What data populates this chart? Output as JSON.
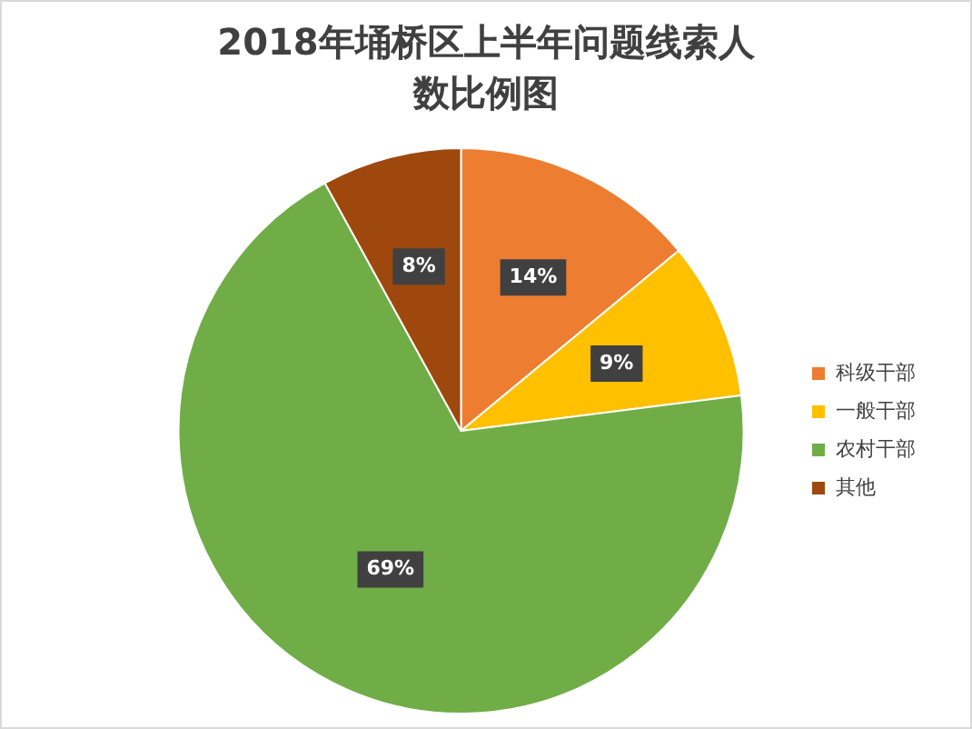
{
  "chart_data": {
    "type": "pie",
    "title": "2018年埇桥区上半年问题线索人数比例图",
    "categories": [
      "科级干部",
      "一般干部",
      "农村干部",
      "其他"
    ],
    "values": [
      14,
      9,
      69,
      8
    ],
    "colors": [
      "#ed7d31",
      "#ffc000",
      "#70ad47",
      "#9e480e"
    ],
    "value_labels": [
      "14%",
      "9%",
      "69%",
      "8%"
    ],
    "legend": "right"
  }
}
